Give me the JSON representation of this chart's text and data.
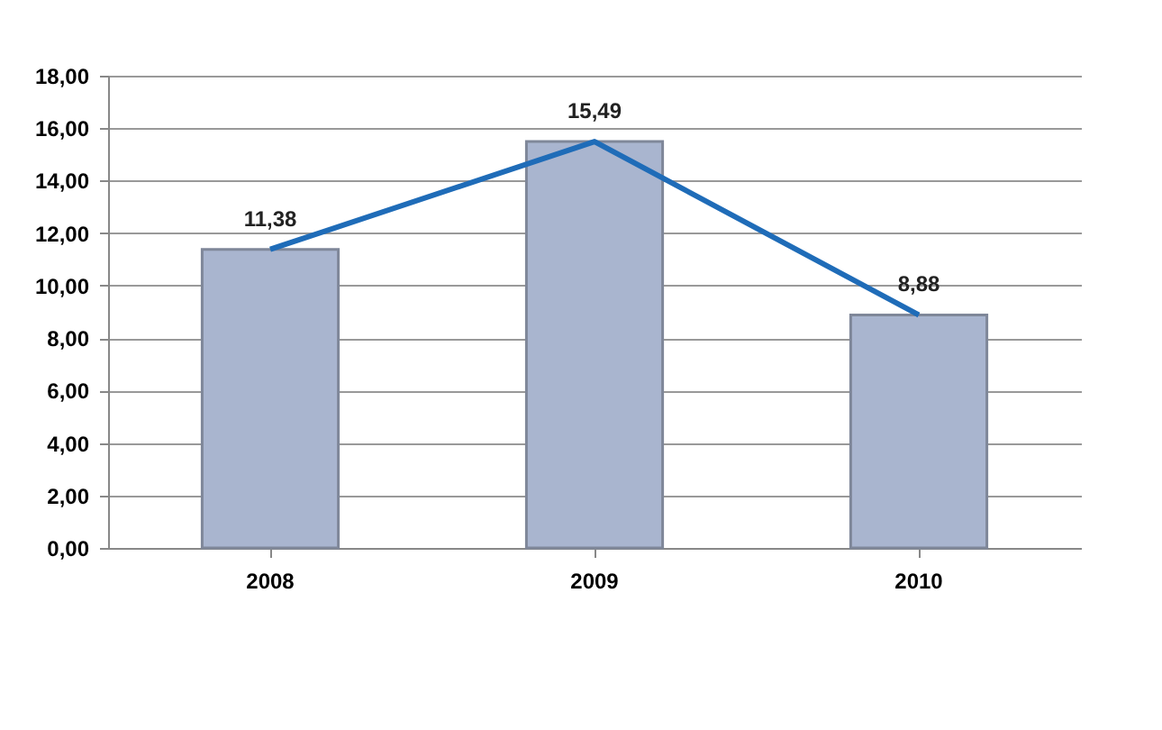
{
  "chart_data": {
    "type": "bar",
    "categories": [
      "2008",
      "2009",
      "2010"
    ],
    "series": [
      {
        "color": "#a9b5cf",
        "values": [
          11.38,
          15.49,
          8.88
        ],
        "value_labels": [
          "11,38",
          "15,49",
          "8,88"
        ]
      },
      {
        "type": "line",
        "color": "#1f6cb8",
        "values": [
          11.38,
          15.49,
          8.88
        ]
      }
    ],
    "ylim": [
      0,
      18
    ],
    "yticks": [
      {
        "value": 0,
        "label": "0,00"
      },
      {
        "value": 2,
        "label": "2,00"
      },
      {
        "value": 4,
        "label": "4,00"
      },
      {
        "value": 6,
        "label": "6,00"
      },
      {
        "value": 8,
        "label": "8,00"
      },
      {
        "value": 10,
        "label": "10,00"
      },
      {
        "value": 12,
        "label": "12,00"
      },
      {
        "value": 14,
        "label": "14,00"
      },
      {
        "value": 16,
        "label": "16,00"
      },
      {
        "value": 18,
        "label": "18,00"
      }
    ],
    "grid": "y"
  }
}
